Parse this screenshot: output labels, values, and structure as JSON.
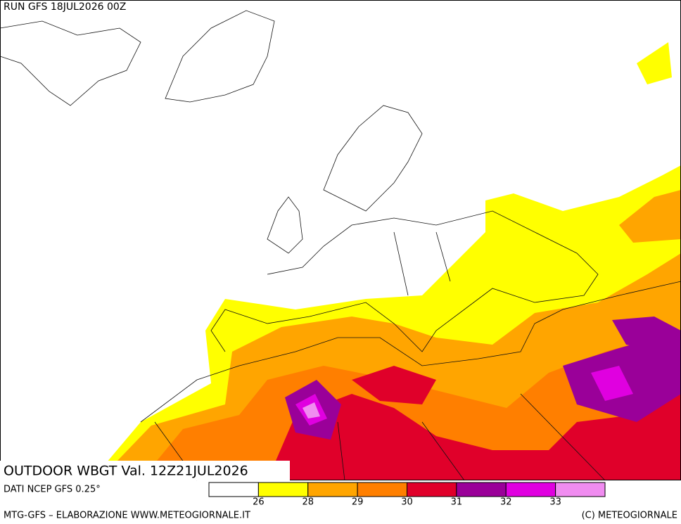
{
  "header": {
    "run": "RUN GFS 18JUL2026 00Z"
  },
  "map": {
    "title": "OUTDOOR WBGT Val. 12Z21JUL2026"
  },
  "source": "DATI NCEP GFS 0.25°",
  "legend": {
    "colors": [
      "#ffffff",
      "#ffff00",
      "#ffa500",
      "#ff7f00",
      "#e0002a",
      "#9a0099",
      "#e000e0",
      "#f08cf0"
    ],
    "labels": [
      26,
      28,
      29,
      30,
      31,
      32,
      33
    ]
  },
  "footer": {
    "left": "MTG-GFS – ELABORAZIONE WWW.METEOGIORNALE.IT",
    "right": "(C) METEOGIORNALE"
  }
}
